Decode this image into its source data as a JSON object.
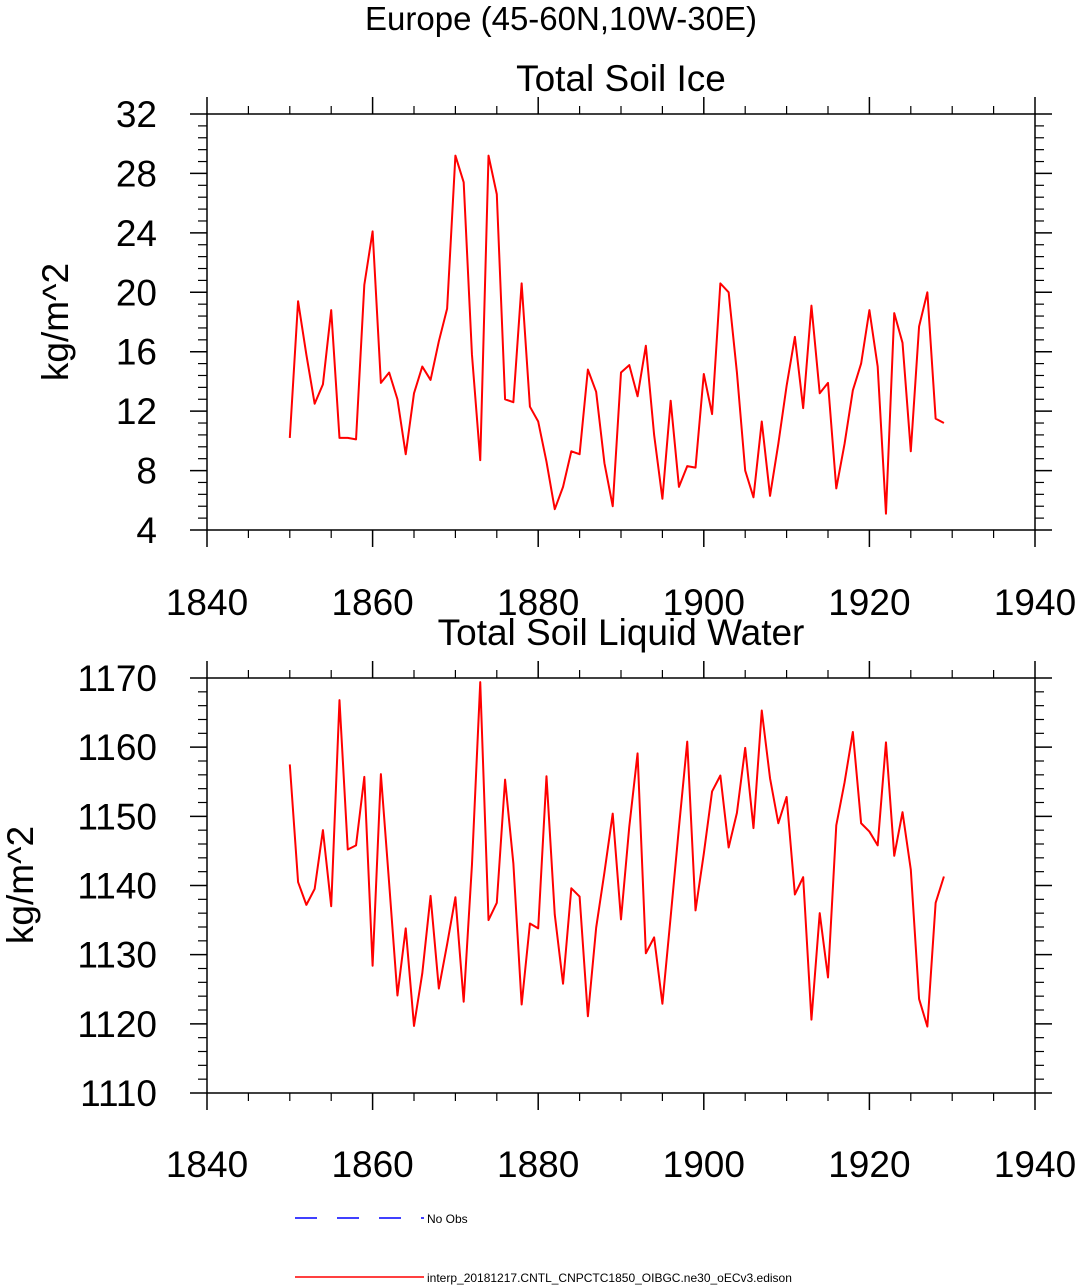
{
  "figure": {
    "title": "Europe (45-60N,10W-30E)",
    "colors": {
      "model_line": "#ff0000",
      "obs_line": "#0000ff",
      "axes": "#000000"
    }
  },
  "chart_data": [
    {
      "type": "line",
      "title": "Total Soil Ice",
      "xlabel": "",
      "ylabel": "kg/m^2",
      "xlim": [
        1840,
        1940
      ],
      "ylim": [
        4,
        32
      ],
      "xticks": [
        1840,
        1860,
        1880,
        1900,
        1920,
        1940
      ],
      "yticks": [
        4,
        8,
        12,
        16,
        20,
        24,
        28,
        32
      ],
      "series": [
        {
          "name": "interp_20181217.CNTL_CNPCTC1850_OIBGC.ne30_oECv3.edison",
          "x_start": 1850,
          "x_step": 1,
          "values": [
            10.2,
            19.4,
            15.8,
            12.5,
            13.8,
            18.8,
            10.2,
            10.2,
            10.1,
            20.5,
            24.1,
            13.9,
            14.6,
            12.8,
            9.1,
            13.2,
            15.0,
            14.1,
            16.7,
            18.9,
            29.2,
            27.4,
            15.8,
            8.7,
            29.2,
            26.6,
            12.8,
            12.6,
            20.6,
            12.3,
            11.3,
            8.6,
            5.4,
            6.9,
            9.3,
            9.1,
            14.8,
            13.3,
            8.5,
            5.6,
            14.6,
            15.1,
            13.0,
            16.4,
            10.4,
            6.1,
            12.7,
            6.9,
            8.3,
            8.2,
            14.5,
            11.8,
            20.6,
            20.0,
            14.6,
            8.0,
            6.2,
            11.3,
            6.3,
            9.8,
            13.7,
            17.0,
            12.2,
            19.1,
            13.2,
            13.9,
            6.8,
            9.8,
            13.4,
            15.2,
            18.8,
            15.0,
            5.1,
            18.6,
            16.6,
            9.3,
            17.7,
            20.0,
            11.5,
            11.2
          ]
        }
      ]
    },
    {
      "type": "line",
      "title": "Total Soil Liquid Water",
      "xlabel": "",
      "ylabel": "kg/m^2",
      "xlim": [
        1840,
        1940
      ],
      "ylim": [
        1110,
        1170
      ],
      "xticks": [
        1840,
        1860,
        1880,
        1900,
        1920,
        1940
      ],
      "yticks": [
        1110,
        1120,
        1130,
        1140,
        1150,
        1160,
        1170
      ],
      "series": [
        {
          "name": "interp_20181217.CNTL_CNPCTC1850_OIBGC.ne30_oECv3.edison",
          "x_start": 1850,
          "x_step": 1,
          "values": [
            1157.5,
            1140.5,
            1137.2,
            1139.5,
            1148.0,
            1137.0,
            1166.8,
            1145.2,
            1145.8,
            1155.7,
            1128.4,
            1156.1,
            1140.3,
            1124.1,
            1133.8,
            1119.7,
            1127.3,
            1138.5,
            1125.1,
            1131.5,
            1138.3,
            1123.2,
            1143.0,
            1169.4,
            1135.0,
            1137.5,
            1155.3,
            1143.2,
            1122.8,
            1134.5,
            1133.8,
            1155.8,
            1135.8,
            1125.8,
            1139.6,
            1138.4,
            1121.1,
            1133.9,
            1141.9,
            1150.4,
            1135.1,
            1148.5,
            1159.1,
            1130.2,
            1132.5,
            1122.9,
            1135.5,
            1148.4,
            1160.8,
            1136.4,
            1144.6,
            1153.6,
            1155.9,
            1145.5,
            1150.5,
            1159.9,
            1148.3,
            1165.3,
            1155.5,
            1149.0,
            1152.8,
            1138.7,
            1141.2,
            1120.6,
            1136.0,
            1126.7,
            1148.7,
            1154.9,
            1162.2,
            1149.0,
            1147.8,
            1145.8,
            1160.7,
            1144.3,
            1150.6,
            1142.3,
            1123.6,
            1119.6,
            1137.5,
            1141.3
          ]
        }
      ]
    }
  ],
  "legend": {
    "items": [
      {
        "label": "No Obs",
        "style": "dashed",
        "color": "#0000ff"
      },
      {
        "label": "interp_20181217.CNTL_CNPCTC1850_OIBGC.ne30_oECv3.edison",
        "style": "solid",
        "color": "#ff0000"
      }
    ]
  }
}
